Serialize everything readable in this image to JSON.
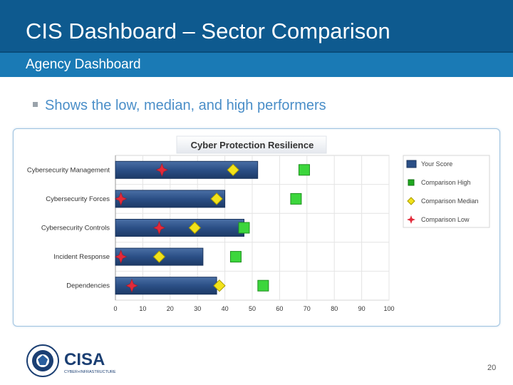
{
  "slide": {
    "title": "CIS Dashboard – Sector Comparison",
    "subtitle": "Agency Dashboard",
    "bullet": "Shows the low, median, and high performers",
    "page_number": "20",
    "logo_text": "CISA",
    "logo_subtext": "CYBER+INFRASTRUCTURE"
  },
  "colors": {
    "header": "#0e5a8f",
    "subheader": "#1a7ab5",
    "your_score": "#2b4f86",
    "comparison_high": "#3cd63c",
    "comparison_median": "#f2e21a",
    "comparison_low": "#e22a3a"
  },
  "chart_data": {
    "type": "bar",
    "orientation": "horizontal",
    "title": "Cyber Protection Resilience",
    "categories": [
      "Cybersecurity Management",
      "Cybersecurity Forces",
      "Cybersecurity Controls",
      "Incident Response",
      "Dependencies"
    ],
    "series": [
      {
        "name": "Your Score",
        "marker": "bar",
        "values": [
          52,
          40,
          47,
          32,
          37
        ]
      },
      {
        "name": "Comparison High",
        "marker": "square",
        "values": [
          69,
          66,
          47,
          44,
          54
        ]
      },
      {
        "name": "Comparison Median",
        "marker": "diamond",
        "values": [
          43,
          37,
          29,
          16,
          38
        ]
      },
      {
        "name": "Comparison Low",
        "marker": "star",
        "values": [
          17,
          2,
          16,
          2,
          6
        ]
      }
    ],
    "x_ticks": [
      "0",
      "10",
      "20",
      "30",
      "40",
      "50",
      "60",
      "70",
      "80",
      "90",
      "100"
    ],
    "xlim": [
      0,
      100
    ],
    "grid": true,
    "legend_position": "right"
  }
}
